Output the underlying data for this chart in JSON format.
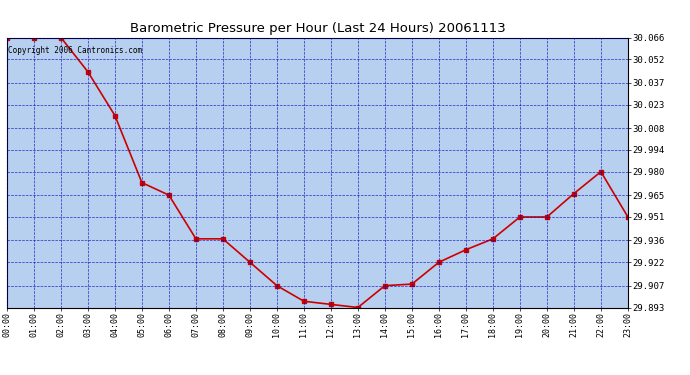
{
  "title": "Barometric Pressure per Hour (Last 24 Hours) 20061113",
  "copyright_text": "Copyright 2006 Cantronics.com",
  "x_labels": [
    "00:00",
    "01:00",
    "02:00",
    "03:00",
    "04:00",
    "05:00",
    "06:00",
    "07:00",
    "08:00",
    "09:00",
    "10:00",
    "11:00",
    "12:00",
    "13:00",
    "14:00",
    "15:00",
    "16:00",
    "17:00",
    "18:00",
    "19:00",
    "20:00",
    "21:00",
    "22:00",
    "23:00"
  ],
  "hours": [
    0,
    1,
    2,
    3,
    4,
    5,
    6,
    7,
    8,
    9,
    10,
    11,
    12,
    13,
    14,
    15,
    16,
    17,
    18,
    19,
    20,
    21,
    22,
    23
  ],
  "values": [
    30.066,
    30.066,
    30.066,
    30.044,
    30.016,
    29.973,
    29.965,
    29.937,
    29.937,
    29.922,
    29.907,
    29.897,
    29.895,
    29.893,
    29.907,
    29.908,
    29.922,
    29.93,
    29.937,
    29.951,
    29.951,
    29.966,
    29.98,
    29.951
  ],
  "ylim_min": 29.893,
  "ylim_max": 30.066,
  "ytick_values": [
    30.066,
    30.052,
    30.037,
    30.023,
    30.008,
    29.994,
    29.98,
    29.965,
    29.951,
    29.936,
    29.922,
    29.907,
    29.893
  ],
  "line_color": "#cc0000",
  "marker_color": "#cc0000",
  "bg_color": "#b8d0f0",
  "grid_color": "#0000bb",
  "title_color": "#000000",
  "copyright_color": "#000000",
  "outer_bg": "#ffffff",
  "marker": "s",
  "marker_size": 2.5,
  "line_width": 1.2
}
